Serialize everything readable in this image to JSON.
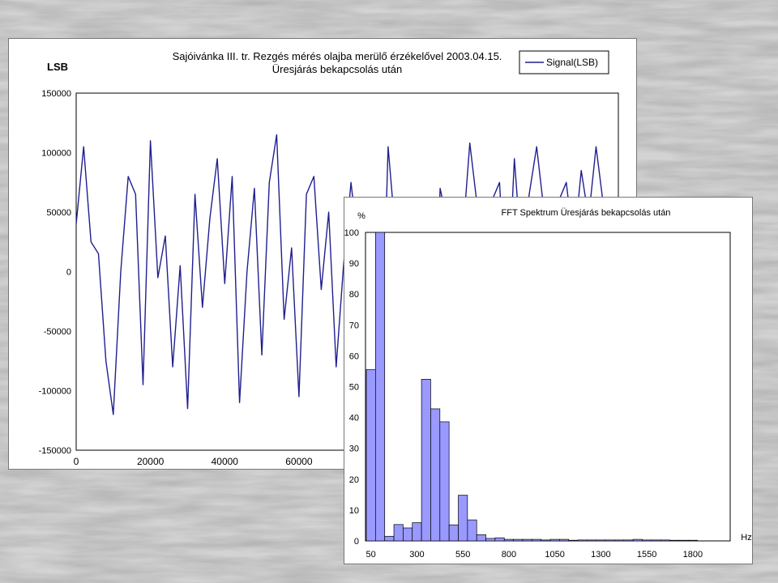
{
  "background": {
    "color": "#c9c9c9",
    "texture": "weathered-paper-engraving"
  },
  "chart_data": [
    {
      "type": "line",
      "title": "Sajóivánka III. tr.  Rezgés mérés olajba merülő érzékelővel 2003.04.15.",
      "subtitle": "Üresjárás bekapcsolás után",
      "ylabel": "LSB",
      "xlabel": "",
      "ylim": [
        -150000,
        150000
      ],
      "yticks": [
        "150000",
        "100000",
        "50000",
        "0",
        "-50000",
        "-100000",
        "-150000"
      ],
      "xlim": [
        0,
        146000
      ],
      "xticks": [
        "0",
        "20000",
        "40000",
        "60000"
      ],
      "grid": false,
      "legend": {
        "position": "top-right",
        "entries": [
          "Signal(LSB)"
        ]
      },
      "line_color": "#1f1f8f",
      "series": [
        {
          "name": "Signal(LSB)",
          "x": [
            0,
            2000,
            4000,
            6000,
            8000,
            10000,
            12000,
            14000,
            16000,
            18000,
            20000,
            22000,
            24000,
            26000,
            28000,
            30000,
            32000,
            34000,
            36000,
            38000,
            40000,
            42000,
            44000,
            46000,
            48000,
            50000,
            52000,
            54000,
            56000,
            58000,
            60000,
            62000,
            64000,
            66000,
            68000,
            70000,
            72000,
            74000,
            76000,
            78000,
            80000,
            82000,
            84000,
            86000,
            88000,
            90000,
            92000,
            94000,
            96000,
            98000,
            100000,
            102000,
            104000,
            106000,
            108000,
            110000,
            112000,
            114000,
            116000,
            118000,
            120000,
            122000,
            124000,
            126000,
            128000,
            130000,
            132000,
            134000,
            136000,
            138000,
            140000,
            142000,
            144000,
            146000
          ],
          "y": [
            40000,
            105000,
            25000,
            15000,
            -75000,
            -120000,
            0,
            80000,
            65000,
            -95000,
            110000,
            -5000,
            30000,
            -80000,
            5000,
            -115000,
            65000,
            -30000,
            45000,
            95000,
            -10000,
            80000,
            -110000,
            0,
            70000,
            -70000,
            75000,
            115000,
            -40000,
            20000,
            -105000,
            65000,
            80000,
            -15000,
            50000,
            -80000,
            5000,
            75000,
            20000,
            -95000,
            35000,
            -110000,
            105000,
            30000,
            -85000,
            15000,
            60000,
            -50000,
            -95000,
            70000,
            40000,
            -75000,
            25000,
            108000,
            55000,
            -20000,
            60000,
            75000,
            -40000,
            95000,
            10000,
            65000,
            105000,
            50000,
            -25000,
            60000,
            75000,
            20000,
            85000,
            45000,
            105000,
            55000,
            40000,
            60000
          ]
        }
      ]
    },
    {
      "type": "bar",
      "title": "FFT Spektrum  Üresjárás bekapcsolás után",
      "ylabel": "%",
      "xlabel": "Hz",
      "ylim": [
        0,
        100
      ],
      "yticks": [
        "100",
        "90",
        "80",
        "70",
        "60",
        "50",
        "40",
        "30",
        "20",
        "10",
        "0"
      ],
      "xticks": [
        "50",
        "300",
        "550",
        "800",
        "1050",
        "1300",
        "1550",
        "1800"
      ],
      "grid": false,
      "bar_color": "#9999ff",
      "bar_edge": "#000000",
      "series": [
        {
          "name": "",
          "x": [
            50,
            100,
            150,
            200,
            250,
            300,
            350,
            400,
            450,
            500,
            550,
            600,
            650,
            700,
            750,
            800,
            850,
            900,
            950,
            1000,
            1050,
            1100,
            1150,
            1200,
            1250,
            1300,
            1350,
            1400,
            1450,
            1500,
            1550,
            1600,
            1650,
            1700,
            1750,
            1800
          ],
          "values": [
            55.5,
            100,
            1.5,
            5.3,
            4.2,
            5.9,
            52.4,
            42.8,
            38.6,
            5.2,
            14.8,
            6.8,
            2,
            0.8,
            1,
            0.5,
            0.5,
            0.5,
            0.5,
            0.3,
            0.5,
            0.5,
            0.2,
            0.3,
            0.3,
            0.3,
            0.3,
            0.3,
            0.3,
            0.5,
            0.3,
            0.3,
            0.3,
            0.2,
            0.2,
            0.2
          ]
        }
      ]
    }
  ]
}
